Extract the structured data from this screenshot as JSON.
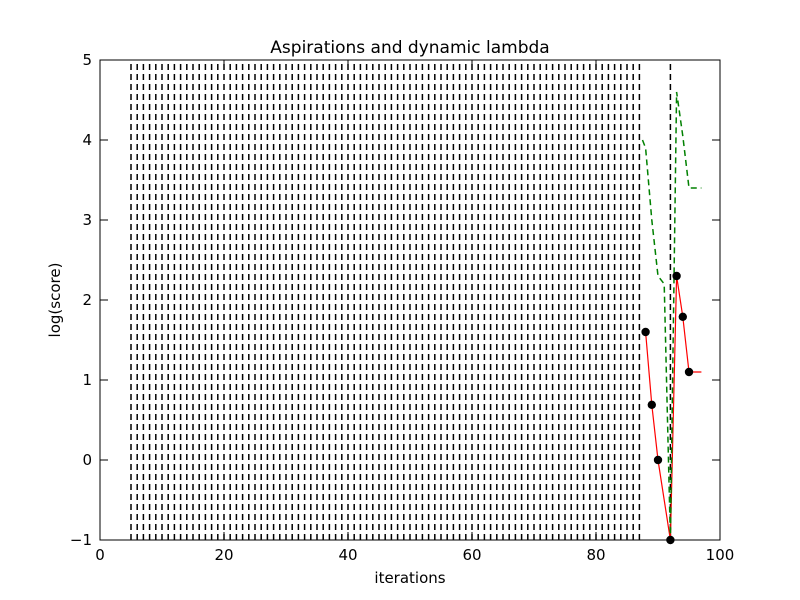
{
  "chart_data": {
    "type": "line",
    "title": "Aspirations and dynamic lambda",
    "xlabel": "iterations",
    "ylabel": "log(score)",
    "xlim": [
      0,
      100
    ],
    "ylim": [
      -1,
      5
    ],
    "x_ticks": [
      0,
      20,
      40,
      60,
      80,
      100
    ],
    "y_ticks": [
      -1,
      0,
      1,
      2,
      3,
      4,
      5
    ],
    "x_tick_labels": [
      "0",
      "20",
      "40",
      "60",
      "80",
      "100"
    ],
    "y_tick_labels": [
      "−1",
      "0",
      "1",
      "2",
      "3",
      "4",
      "5"
    ],
    "grid": false,
    "legend": "none",
    "colors": {
      "score": "#ff0000",
      "markers": "#000000",
      "aspiration": "#008000",
      "vlines": "#000000"
    },
    "vertical_dashed_lines_x": [
      5,
      6,
      7,
      8,
      9,
      10,
      11,
      12,
      13,
      14,
      15,
      16,
      17,
      18,
      19,
      20,
      21,
      22,
      23,
      24,
      25,
      26,
      27,
      28,
      29,
      30,
      31,
      32,
      33,
      34,
      35,
      36,
      37,
      38,
      39,
      40,
      41,
      42,
      43,
      44,
      45,
      46,
      47,
      48,
      49,
      50,
      51,
      52,
      53,
      54,
      55,
      56,
      57,
      58,
      59,
      60,
      61,
      62,
      63,
      64,
      65,
      66,
      67,
      68,
      69,
      70,
      71,
      72,
      73,
      74,
      75,
      76,
      77,
      78,
      79,
      80,
      81,
      82,
      83,
      84,
      85,
      86,
      87,
      92
    ],
    "series": [
      {
        "style": "solid",
        "x": [
          88,
          89,
          90,
          91,
          92,
          93,
          94,
          95,
          96,
          97
        ],
        "y": [
          1.6,
          0.69,
          0.0,
          -0.5,
          -1.0,
          2.3,
          1.79,
          1.1,
          1.1,
          1.1
        ]
      },
      {
        "style": "markers",
        "x": [
          88,
          89,
          90,
          92,
          93,
          94,
          95
        ],
        "y": [
          1.6,
          0.69,
          0.0,
          -1.0,
          2.3,
          1.79,
          1.1
        ]
      },
      {
        "style": "dashed",
        "x": [
          87.5,
          88,
          89,
          90,
          91,
          92,
          93,
          94,
          95,
          96,
          97
        ],
        "y": [
          4.0,
          3.9,
          3.0,
          2.3,
          2.2,
          -1.0,
          4.6,
          4.05,
          3.4,
          3.4,
          3.4
        ]
      }
    ]
  }
}
